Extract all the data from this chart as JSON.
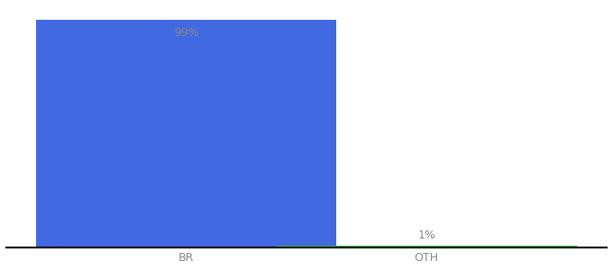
{
  "categories": [
    "BR",
    "OTH"
  ],
  "values": [
    99,
    1
  ],
  "bar_colors": [
    "#4169e1",
    "#2ecc40"
  ],
  "bar_width": 0.5,
  "x_positions": [
    0.3,
    0.7
  ],
  "ylim": [
    0,
    105
  ],
  "background_color": "#ffffff",
  "label_fontsize": 9,
  "tick_fontsize": 9,
  "label_color": "#888888",
  "annotations": [
    "99%",
    "1%"
  ],
  "annotation_color": "#888888",
  "annotation_fontsize": 9,
  "xlim": [
    0.0,
    1.0
  ]
}
